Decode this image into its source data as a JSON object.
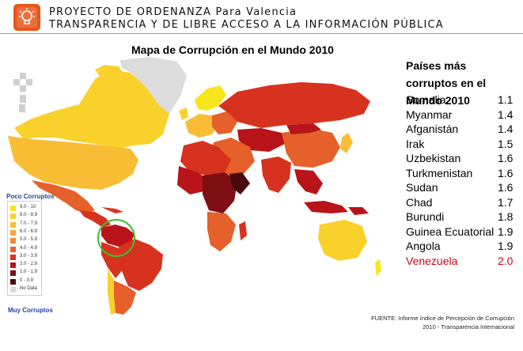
{
  "header": {
    "line1": "PROYECTO DE ORDENANZA Para Valencia",
    "line2": "TRANSPARENCIA Y DE LIBRE ACCESO A LA INFORMACIÓN PÚBLICA",
    "logo_icon": "lightbulb-icon",
    "accent_color": "#e8561c"
  },
  "map": {
    "title": "Mapa de Corrupción en el Mundo 2010",
    "highlight_circle_color": "#3fbf2a"
  },
  "legend": {
    "top_label": "Poco Corruptos",
    "bottom_label": "Muy Corruptos",
    "items": [
      {
        "label": "9.0 - 10",
        "color": "#f7e51d"
      },
      {
        "label": "8.0 - 8.9",
        "color": "#f8d12b"
      },
      {
        "label": "7.0 - 7.9",
        "color": "#f8bd35"
      },
      {
        "label": "6.0 - 6.9",
        "color": "#f6a43a"
      },
      {
        "label": "5.0 - 5.9",
        "color": "#f08a34"
      },
      {
        "label": "4.0 - 4.9",
        "color": "#e5602a"
      },
      {
        "label": "3.0 - 3.9",
        "color": "#d7321f"
      },
      {
        "label": "2.0 - 2.9",
        "color": "#b8141a"
      },
      {
        "label": "1.0 - 1.9",
        "color": "#7e0f15"
      },
      {
        "label": "0 - 0.9",
        "color": "#4a0a0c"
      },
      {
        "label": "No Data",
        "color": "#dcdcdc"
      }
    ]
  },
  "ranking": {
    "title": "Países más corruptos en el Mundo 2010",
    "countries": [
      {
        "name": "Somalia",
        "score": "1.1"
      },
      {
        "name": "Myanmar",
        "score": "1.4"
      },
      {
        "name": "Afganistán",
        "score": "1.4"
      },
      {
        "name": "Irak",
        "score": "1.5"
      },
      {
        "name": "Uzbekistan",
        "score": "1.6"
      },
      {
        "name": "Turkmenistan",
        "score": "1.6"
      },
      {
        "name": "Sudan",
        "score": "1.6"
      },
      {
        "name": "Chad",
        "score": "1.7"
      },
      {
        "name": "Burundi",
        "score": "1.8"
      },
      {
        "name": "Guinea Ecuatorial",
        "score": "1.9"
      },
      {
        "name": "Angola",
        "score": "1.9"
      },
      {
        "name": "Venezuela",
        "score": "2.0"
      }
    ],
    "highlight_color": "#d0021b"
  },
  "source": {
    "line1": "FUENTE: Informe índice de Percepción de Corrupción",
    "line2": "2010 - Transparencia Internacional"
  }
}
